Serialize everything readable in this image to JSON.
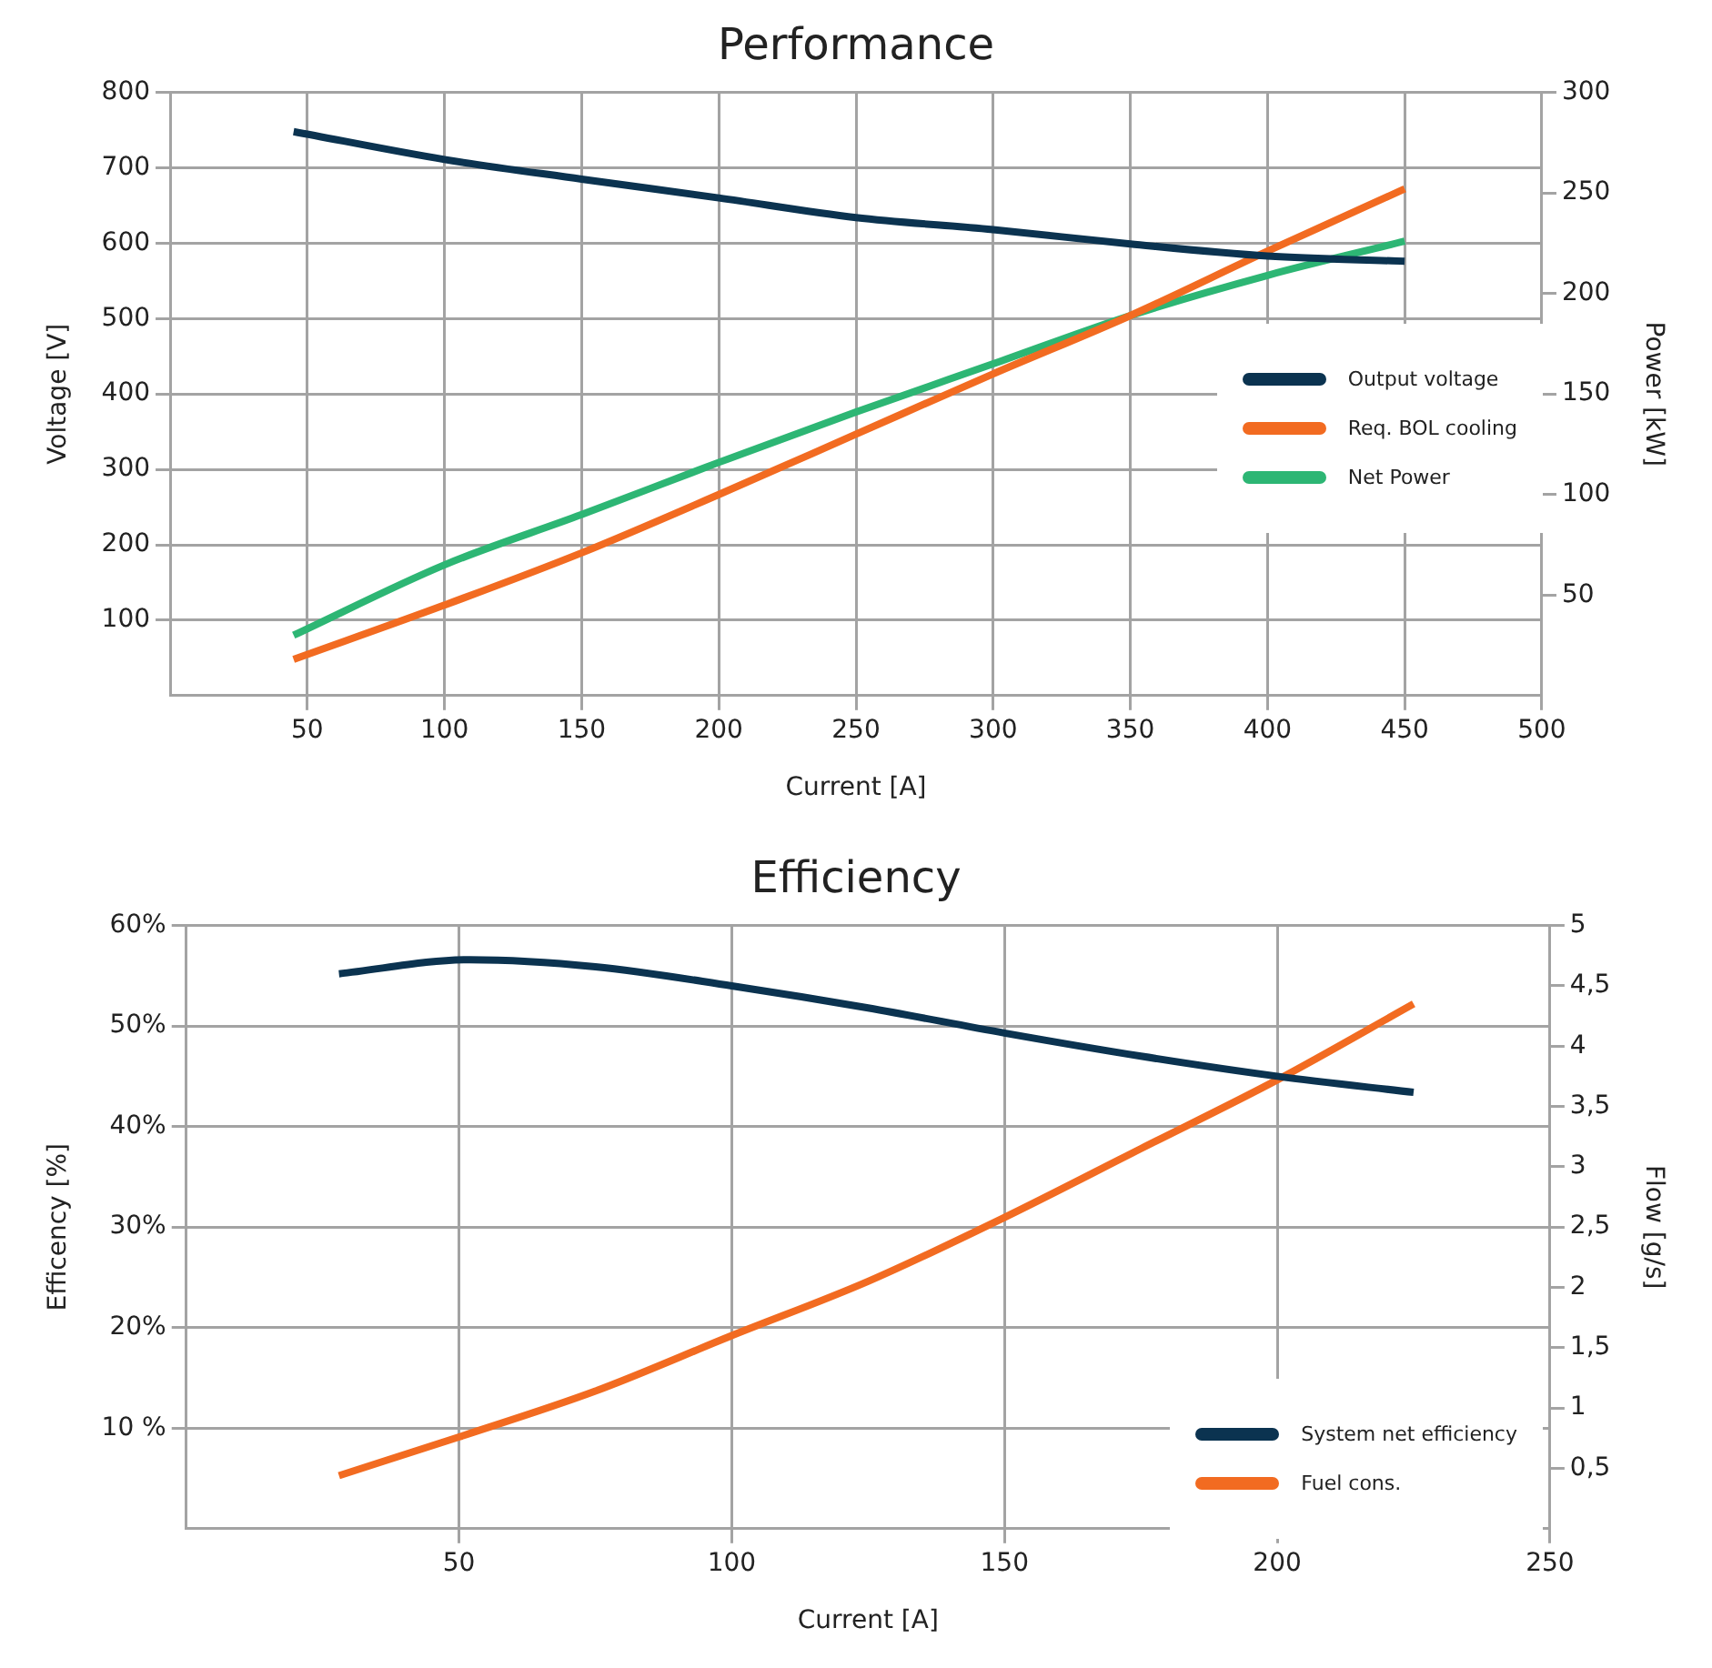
{
  "chart_data": [
    {
      "type": "line",
      "title": "Performance",
      "xlabel": "Current [A]",
      "ylabel": "Voltage [V]",
      "y2label": "Power [kW]",
      "xlim": [
        0,
        500
      ],
      "xticks": [
        50,
        100,
        150,
        200,
        250,
        300,
        350,
        400,
        450,
        500
      ],
      "ylim": [
        0,
        800
      ],
      "yticks": [
        100,
        200,
        300,
        400,
        500,
        600,
        700,
        800
      ],
      "y2lim": [
        0,
        300
      ],
      "y2ticks": [
        50,
        100,
        150,
        200,
        250,
        300
      ],
      "grid": true,
      "legend": "right",
      "series": [
        {
          "name": "Output voltage",
          "color": "#0b3350",
          "x": [
            45,
            100,
            150,
            200,
            250,
            300,
            350,
            400,
            450
          ],
          "values": [
            748,
            711,
            685,
            660,
            634,
            618,
            599,
            583,
            576
          ]
        },
        {
          "name": "Req. BOL cooling",
          "color": "#f26b21",
          "axis": "y2",
          "x": [
            45,
            100,
            150,
            200,
            250,
            300,
            350,
            400,
            450
          ],
          "values": [
            18,
            45,
            71,
            100,
            130,
            160,
            189,
            221,
            252
          ]
        },
        {
          "name": "Net Power",
          "color": "#2db674",
          "axis": "y2",
          "x": [
            45,
            100,
            150,
            200,
            250,
            300,
            350,
            400,
            450
          ],
          "values": [
            30,
            65,
            90,
            116,
            141,
            165,
            189,
            209,
            226
          ]
        }
      ]
    },
    {
      "type": "line",
      "title": "Efficiency",
      "xlabel": "Current [A]",
      "ylabel": "Efficency [%]",
      "y2label": "Flow [g/s]",
      "xlim": [
        0,
        250
      ],
      "xticks": [
        50,
        100,
        150,
        200,
        250
      ],
      "ylim": [
        0,
        60
      ],
      "yticks": [
        {
          "value": 10,
          "label": "10 %"
        },
        {
          "value": 20,
          "label": "20%"
        },
        {
          "value": 30,
          "label": "30%"
        },
        {
          "value": 40,
          "label": "40%"
        },
        {
          "value": 50,
          "label": "50%"
        },
        {
          "value": 60,
          "label": "60%"
        }
      ],
      "y2lim": [
        0,
        5
      ],
      "y2ticks": [
        {
          "value": 0.5,
          "label": "0,5"
        },
        1,
        {
          "value": 1.5,
          "label": "1,5"
        },
        2,
        {
          "value": 2.5,
          "label": "2,5"
        },
        3,
        {
          "value": 3.5,
          "label": "3,5"
        },
        4,
        {
          "value": 4.5,
          "label": "4,5"
        },
        5
      ],
      "grid": true,
      "legend": "bottom right",
      "series": [
        {
          "name": "System net efficiency",
          "color": "#0b3350",
          "x": [
            28,
            52,
            75,
            100,
            125,
            150,
            175,
            200,
            225
          ],
          "values": [
            55.2,
            56.6,
            55.9,
            54,
            51.8,
            49.3,
            47,
            45,
            43.4
          ]
        },
        {
          "name": "Fuel cons.",
          "color": "#f26b21",
          "axis": "y2",
          "x": [
            28,
            50,
            75,
            100,
            125,
            150,
            175,
            200,
            225
          ],
          "values": [
            0.44,
            0.76,
            1.14,
            1.6,
            2.05,
            2.58,
            3.15,
            3.72,
            4.35
          ]
        }
      ]
    }
  ]
}
